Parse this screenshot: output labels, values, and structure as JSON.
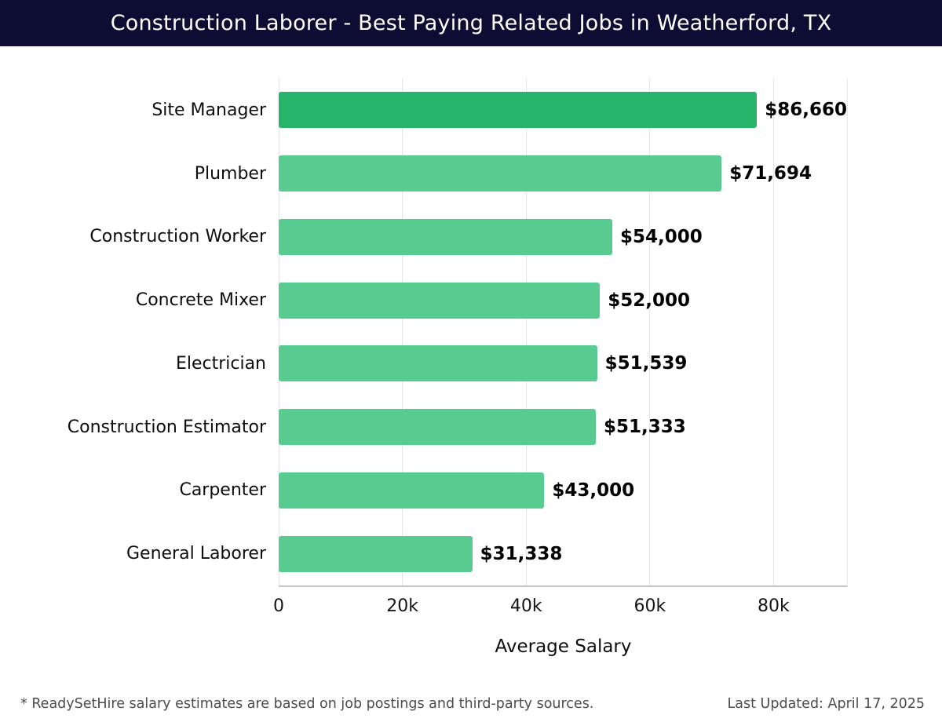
{
  "header": {
    "title": "Construction Laborer - Best Paying Related Jobs in Weatherford, TX"
  },
  "colors": {
    "titlebar_bg": "#0d0d33",
    "bar_highlight": "#27b36a",
    "bar_default": "#58cc90",
    "value_text": "#000000",
    "footer_text": "#4c4c4c"
  },
  "chart_data": {
    "type": "bar",
    "orientation": "horizontal",
    "title": "Construction Laborer - Best Paying Related Jobs in Weatherford, TX",
    "categories": [
      "Site Manager",
      "Plumber",
      "Construction Worker",
      "Concrete Mixer",
      "Electrician",
      "Construction Estimator",
      "Carpenter",
      "General Laborer"
    ],
    "values": [
      86660,
      71694,
      54000,
      52000,
      51539,
      51333,
      43000,
      31338
    ],
    "value_labels": [
      "$86,660",
      "$71,694",
      "$54,000",
      "$52,000",
      "$51,539",
      "$51,333",
      "$43,000",
      "$31,338"
    ],
    "xlabel": "Average Salary",
    "ylabel": "",
    "xlim": [
      0,
      92000
    ],
    "xticks": [
      {
        "value": 0,
        "label": "0"
      },
      {
        "value": 20000,
        "label": "20k"
      },
      {
        "value": 40000,
        "label": "40k"
      },
      {
        "value": 60000,
        "label": "60k"
      },
      {
        "value": 80000,
        "label": "80k"
      }
    ],
    "grid": true,
    "legend_position": "none"
  },
  "footer": {
    "note": "* ReadySetHire salary estimates are based on job postings and third-party sources.",
    "last_updated": "Last Updated: April 17, 2025"
  }
}
